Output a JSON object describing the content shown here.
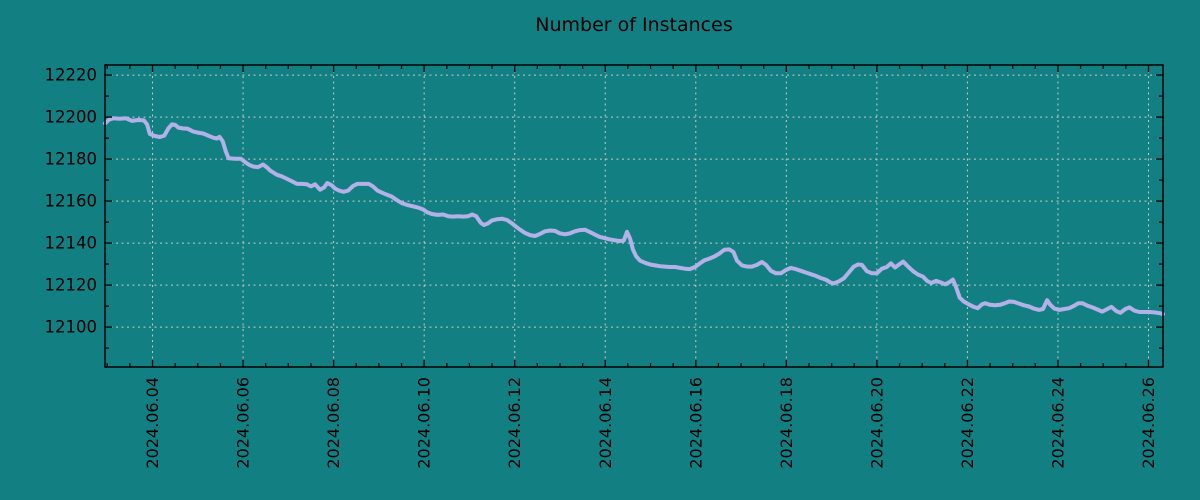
{
  "chart_data": {
    "type": "line",
    "title": "Number of Instances",
    "colors": {
      "background": "#128083",
      "line": "#b3b1e8",
      "grid": "#c9c9c9",
      "axis": "#000000",
      "text": "#000000"
    },
    "legend": "none",
    "grid": "dashed, at major ticks both axes",
    "x_axis": {
      "tick_labels": [
        "2024.06.04",
        "2024.06.06",
        "2024.06.08",
        "2024.06.10",
        "2024.06.12",
        "2024.06.14",
        "2024.06.16",
        "2024.06.18",
        "2024.06.20",
        "2024.06.22",
        "2024.06.24",
        "2024.06.26"
      ],
      "tick_positions_days": [
        1.05,
        3.05,
        5.05,
        7.05,
        9.05,
        11.05,
        13.05,
        15.05,
        17.05,
        19.05,
        21.05,
        23.05
      ],
      "minor_tick_step_days": 0.5,
      "minor_tick_offset_days": 0.05,
      "xlim_days": [
        0,
        23.37
      ],
      "label_rotation_deg": -90
    },
    "y_axis": {
      "tick_values": [
        12100,
        12120,
        12140,
        12160,
        12180,
        12200,
        12220
      ],
      "minor_tick_values": [
        12090,
        12110,
        12130,
        12150,
        12170,
        12190,
        12210
      ],
      "ylim": [
        12081,
        12224.8
      ]
    },
    "series": [
      {
        "name": "instances",
        "points": [
          [
            0.0,
            12197.0
          ],
          [
            0.09,
            12198.8
          ],
          [
            0.18,
            12199.4
          ],
          [
            0.33,
            12199.2
          ],
          [
            0.46,
            12199.4
          ],
          [
            0.6,
            12198.2
          ],
          [
            0.73,
            12198.6
          ],
          [
            0.86,
            12198.4
          ],
          [
            0.93,
            12196.5
          ],
          [
            0.99,
            12192.0
          ],
          [
            1.1,
            12191.0
          ],
          [
            1.21,
            12190.5
          ],
          [
            1.31,
            12191.2
          ],
          [
            1.4,
            12194.6
          ],
          [
            1.48,
            12196.5
          ],
          [
            1.55,
            12196.3
          ],
          [
            1.62,
            12195.0
          ],
          [
            1.72,
            12194.6
          ],
          [
            1.83,
            12194.4
          ],
          [
            1.94,
            12193.2
          ],
          [
            2.05,
            12192.6
          ],
          [
            2.17,
            12192.2
          ],
          [
            2.28,
            12191.2
          ],
          [
            2.39,
            12190.2
          ],
          [
            2.47,
            12189.8
          ],
          [
            2.53,
            12190.6
          ],
          [
            2.6,
            12188.5
          ],
          [
            2.67,
            12183.5
          ],
          [
            2.73,
            12180.4
          ],
          [
            2.87,
            12180.2
          ],
          [
            3.0,
            12180.2
          ],
          [
            3.1,
            12178.5
          ],
          [
            3.18,
            12177.3
          ],
          [
            3.28,
            12176.4
          ],
          [
            3.38,
            12176.2
          ],
          [
            3.49,
            12177.4
          ],
          [
            3.58,
            12176.0
          ],
          [
            3.65,
            12174.5
          ],
          [
            3.8,
            12172.5
          ],
          [
            3.9,
            12171.8
          ],
          [
            3.98,
            12171.0
          ],
          [
            4.13,
            12169.4
          ],
          [
            4.24,
            12168.2
          ],
          [
            4.35,
            12168.2
          ],
          [
            4.46,
            12168.0
          ],
          [
            4.55,
            12167.0
          ],
          [
            4.64,
            12168.0
          ],
          [
            4.75,
            12165.4
          ],
          [
            4.84,
            12166.5
          ],
          [
            4.91,
            12168.6
          ],
          [
            5.0,
            12167.6
          ],
          [
            5.08,
            12166.0
          ],
          [
            5.17,
            12165.0
          ],
          [
            5.27,
            12164.4
          ],
          [
            5.37,
            12165.0
          ],
          [
            5.48,
            12167.2
          ],
          [
            5.57,
            12168.2
          ],
          [
            5.7,
            12168.2
          ],
          [
            5.83,
            12168.2
          ],
          [
            5.92,
            12167.0
          ],
          [
            6.02,
            12165.0
          ],
          [
            6.12,
            12164.0
          ],
          [
            6.23,
            12163.0
          ],
          [
            6.33,
            12162.2
          ],
          [
            6.45,
            12160.4
          ],
          [
            6.56,
            12159.0
          ],
          [
            6.67,
            12158.2
          ],
          [
            6.78,
            12157.6
          ],
          [
            6.9,
            12157.0
          ],
          [
            7.03,
            12156.0
          ],
          [
            7.12,
            12154.6
          ],
          [
            7.23,
            12153.8
          ],
          [
            7.35,
            12153.4
          ],
          [
            7.47,
            12153.6
          ],
          [
            7.58,
            12152.8
          ],
          [
            7.69,
            12152.6
          ],
          [
            7.8,
            12152.8
          ],
          [
            7.91,
            12152.6
          ],
          [
            8.02,
            12152.8
          ],
          [
            8.11,
            12153.6
          ],
          [
            8.2,
            12152.8
          ],
          [
            8.3,
            12149.6
          ],
          [
            8.37,
            12148.6
          ],
          [
            8.46,
            12149.4
          ],
          [
            8.55,
            12150.8
          ],
          [
            8.66,
            12151.4
          ],
          [
            8.77,
            12151.6
          ],
          [
            8.88,
            12151.0
          ],
          [
            8.99,
            12149.4
          ],
          [
            9.08,
            12147.8
          ],
          [
            9.17,
            12146.4
          ],
          [
            9.28,
            12144.8
          ],
          [
            9.39,
            12143.8
          ],
          [
            9.5,
            12143.4
          ],
          [
            9.61,
            12144.4
          ],
          [
            9.72,
            12145.6
          ],
          [
            9.83,
            12146.0
          ],
          [
            9.94,
            12145.8
          ],
          [
            10.05,
            12144.6
          ],
          [
            10.16,
            12144.2
          ],
          [
            10.27,
            12144.6
          ],
          [
            10.38,
            12145.6
          ],
          [
            10.49,
            12146.2
          ],
          [
            10.6,
            12146.4
          ],
          [
            10.7,
            12145.4
          ],
          [
            10.81,
            12144.2
          ],
          [
            10.92,
            12143.0
          ],
          [
            11.03,
            12142.4
          ],
          [
            11.14,
            12141.8
          ],
          [
            11.25,
            12141.4
          ],
          [
            11.36,
            12141.0
          ],
          [
            11.46,
            12141.2
          ],
          [
            11.53,
            12145.4
          ],
          [
            11.6,
            12142.0
          ],
          [
            11.66,
            12137.0
          ],
          [
            11.73,
            12133.8
          ],
          [
            11.82,
            12131.6
          ],
          [
            11.93,
            12130.6
          ],
          [
            12.04,
            12129.8
          ],
          [
            12.15,
            12129.4
          ],
          [
            12.26,
            12129.0
          ],
          [
            12.37,
            12128.8
          ],
          [
            12.48,
            12128.6
          ],
          [
            12.59,
            12128.6
          ],
          [
            12.7,
            12128.2
          ],
          [
            12.81,
            12127.8
          ],
          [
            12.92,
            12127.6
          ],
          [
            13.03,
            12128.6
          ],
          [
            13.13,
            12130.2
          ],
          [
            13.24,
            12131.8
          ],
          [
            13.35,
            12132.6
          ],
          [
            13.46,
            12133.6
          ],
          [
            13.57,
            12135.0
          ],
          [
            13.68,
            12136.8
          ],
          [
            13.79,
            12137.0
          ],
          [
            13.88,
            12135.8
          ],
          [
            13.96,
            12131.6
          ],
          [
            14.07,
            12129.4
          ],
          [
            14.18,
            12128.8
          ],
          [
            14.29,
            12128.8
          ],
          [
            14.4,
            12129.6
          ],
          [
            14.51,
            12131.0
          ],
          [
            14.6,
            12129.6
          ],
          [
            14.71,
            12126.8
          ],
          [
            14.82,
            12125.6
          ],
          [
            14.93,
            12125.6
          ],
          [
            15.04,
            12127.2
          ],
          [
            15.15,
            12128.2
          ],
          [
            15.26,
            12127.6
          ],
          [
            15.37,
            12126.8
          ],
          [
            15.48,
            12126.0
          ],
          [
            15.59,
            12125.2
          ],
          [
            15.7,
            12124.4
          ],
          [
            15.81,
            12123.4
          ],
          [
            15.92,
            12122.6
          ],
          [
            16.03,
            12121.2
          ],
          [
            16.1,
            12120.8
          ],
          [
            16.21,
            12121.8
          ],
          [
            16.32,
            12123.2
          ],
          [
            16.43,
            12126.0
          ],
          [
            16.54,
            12128.8
          ],
          [
            16.63,
            12129.8
          ],
          [
            16.72,
            12129.6
          ],
          [
            16.83,
            12126.6
          ],
          [
            16.94,
            12125.6
          ],
          [
            17.05,
            12125.6
          ],
          [
            17.16,
            12127.8
          ],
          [
            17.27,
            12128.6
          ],
          [
            17.36,
            12130.4
          ],
          [
            17.45,
            12128.4
          ],
          [
            17.54,
            12129.8
          ],
          [
            17.63,
            12131.2
          ],
          [
            17.74,
            12128.8
          ],
          [
            17.85,
            12126.6
          ],
          [
            17.96,
            12125.0
          ],
          [
            18.07,
            12124.0
          ],
          [
            18.16,
            12122.0
          ],
          [
            18.25,
            12121.0
          ],
          [
            18.36,
            12122.0
          ],
          [
            18.47,
            12121.2
          ],
          [
            18.56,
            12120.4
          ],
          [
            18.65,
            12121.4
          ],
          [
            18.73,
            12122.6
          ],
          [
            18.8,
            12119.0
          ],
          [
            18.88,
            12114.0
          ],
          [
            18.97,
            12112.2
          ],
          [
            19.08,
            12110.8
          ],
          [
            19.19,
            12109.6
          ],
          [
            19.28,
            12109.0
          ],
          [
            19.37,
            12110.8
          ],
          [
            19.44,
            12111.4
          ],
          [
            19.55,
            12110.6
          ],
          [
            19.66,
            12110.4
          ],
          [
            19.77,
            12110.6
          ],
          [
            19.88,
            12111.4
          ],
          [
            19.97,
            12112.2
          ],
          [
            20.08,
            12112.0
          ],
          [
            20.19,
            12111.2
          ],
          [
            20.3,
            12110.4
          ],
          [
            20.41,
            12109.8
          ],
          [
            20.52,
            12108.8
          ],
          [
            20.63,
            12108.2
          ],
          [
            20.72,
            12108.6
          ],
          [
            20.81,
            12112.8
          ],
          [
            20.88,
            12110.6
          ],
          [
            20.97,
            12108.8
          ],
          [
            21.08,
            12108.2
          ],
          [
            21.19,
            12108.6
          ],
          [
            21.3,
            12109.0
          ],
          [
            21.41,
            12110.2
          ],
          [
            21.5,
            12111.4
          ],
          [
            21.59,
            12111.4
          ],
          [
            21.7,
            12110.2
          ],
          [
            21.81,
            12109.4
          ],
          [
            21.92,
            12108.4
          ],
          [
            22.03,
            12107.4
          ],
          [
            22.14,
            12108.6
          ],
          [
            22.23,
            12109.6
          ],
          [
            22.34,
            12107.6
          ],
          [
            22.43,
            12106.8
          ],
          [
            22.54,
            12108.6
          ],
          [
            22.63,
            12109.4
          ],
          [
            22.74,
            12107.8
          ],
          [
            22.85,
            12107.2
          ],
          [
            22.96,
            12107.2
          ],
          [
            23.07,
            12107.2
          ],
          [
            23.18,
            12107.0
          ],
          [
            23.3,
            12106.6
          ],
          [
            23.37,
            12106.2
          ]
        ]
      }
    ]
  }
}
